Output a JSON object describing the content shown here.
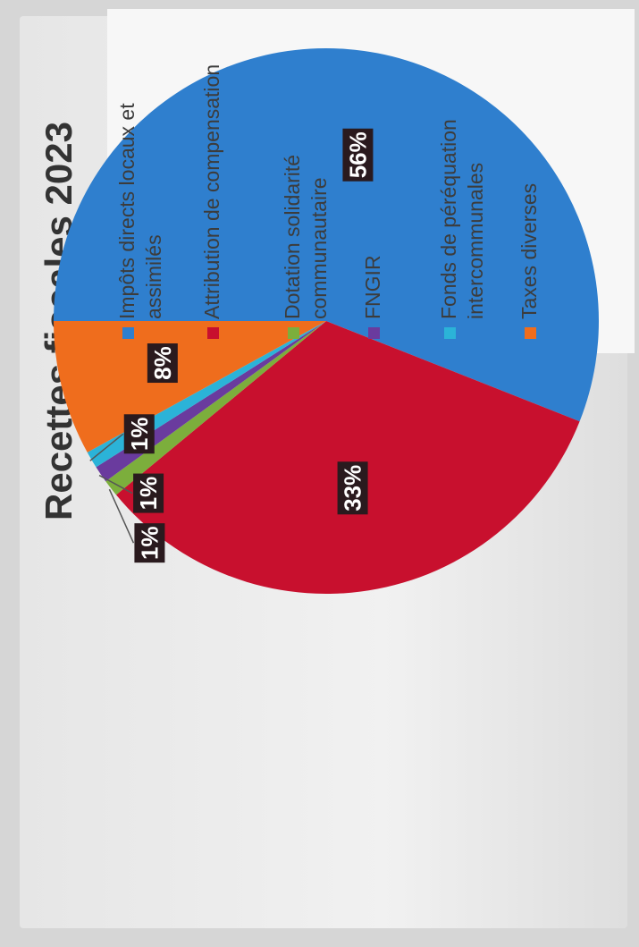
{
  "chart_data": {
    "type": "pie",
    "title": "Recettes fiscales 2023",
    "slices": [
      {
        "name": "Impôts directs locaux et assimilés",
        "label": "56%",
        "value": 56,
        "color": "#2f7fce"
      },
      {
        "name": "Attribution de compensation",
        "label": "33%",
        "value": 33,
        "color": "#c8102e"
      },
      {
        "name": "Dotation solidarité communautaire",
        "label": "1%",
        "value": 1,
        "color": "#7cae3c"
      },
      {
        "name": "FNGIR",
        "label": "1%",
        "value": 1,
        "color": "#6a3b9e"
      },
      {
        "name": "Fonds de péréquation intercommunales",
        "label": "1%",
        "value": 1,
        "color": "#2bb3d8"
      },
      {
        "name": "Taxes diverses",
        "label": "8%",
        "value": 8,
        "color": "#ef6d1d"
      }
    ],
    "legend_position": "right",
    "orientation": "rotated 90° counter-clockwise"
  }
}
